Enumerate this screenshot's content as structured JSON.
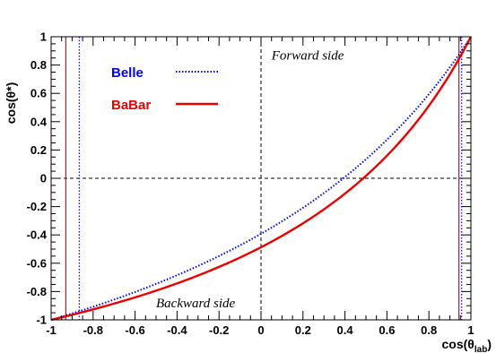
{
  "chart_data": {
    "type": "line",
    "xlim": [
      -1,
      1
    ],
    "ylim": [
      -1,
      1
    ],
    "xlabel_main": "cos(θ",
    "xlabel_sub": "lab",
    "xlabel_end": ")",
    "ylabel": "cos(θ*)",
    "x_ticks": [
      -1,
      -0.8,
      -0.6,
      -0.4,
      -0.2,
      0,
      0.2,
      0.4,
      0.6,
      0.8,
      1
    ],
    "x_tick_labels": [
      "-1",
      "-0.8",
      "-0.6",
      "-0.4",
      "-0.2",
      "0",
      "0.2",
      "0.4",
      "0.6",
      "0.8",
      "1"
    ],
    "y_ticks": [
      -1,
      -0.8,
      -0.6,
      -0.4,
      -0.2,
      0,
      0.2,
      0.4,
      0.6,
      0.8,
      1
    ],
    "y_tick_labels": [
      "-1",
      "-0.8",
      "-0.6",
      "-0.4",
      "-0.2",
      "0",
      "0.2",
      "0.4",
      "0.6",
      "0.8",
      "1"
    ],
    "grid": false,
    "legend_position": "top-left",
    "series": [
      {
        "name": "Belle",
        "color": "#0000ff",
        "style": "dotted",
        "beta": 0.392,
        "x": [
          -1,
          -0.9,
          -0.8,
          -0.7,
          -0.6,
          -0.5,
          -0.4,
          -0.3,
          -0.2,
          -0.1,
          0,
          0.1,
          0.2,
          0.3,
          0.4,
          0.5,
          0.6,
          0.7,
          0.8,
          0.9,
          1
        ],
        "y": [
          -1,
          -0.941,
          -0.877,
          -0.807,
          -0.732,
          -0.651,
          -0.564,
          -0.47,
          -0.369,
          -0.262,
          -0.392,
          -0.291,
          -0.185,
          -0.074,
          0.042,
          0.165,
          0.292,
          0.425,
          0.563,
          0.706,
          1
        ]
      },
      {
        "name": "BaBar",
        "color": "#ee0000",
        "style": "solid",
        "beta": 0.487,
        "x": [
          -1,
          -0.9,
          -0.8,
          -0.7,
          -0.6,
          -0.5,
          -0.4,
          -0.3,
          -0.2,
          -0.1,
          0,
          0.1,
          0.2,
          0.3,
          0.4,
          0.5,
          0.6,
          0.7,
          0.8,
          0.9,
          1
        ],
        "y": [
          -1,
          -0.951,
          -0.897,
          -0.838,
          -0.772,
          -0.699,
          -0.617,
          -0.526,
          -0.425,
          -0.313,
          -0.487,
          -0.393,
          -0.291,
          -0.182,
          -0.065,
          0.059,
          0.19,
          0.328,
          0.471,
          0.619,
          1
        ]
      }
    ],
    "reference_lines": [
      {
        "orientation": "vertical",
        "value": 0,
        "color": "#000000",
        "style": "dashed"
      },
      {
        "orientation": "horizontal",
        "value": 0,
        "color": "#000000",
        "style": "dashed"
      },
      {
        "orientation": "vertical",
        "value": -0.93,
        "color": "#ee0000",
        "style": "solid"
      },
      {
        "orientation": "vertical",
        "value": 0.943,
        "color": "#ee0000",
        "style": "solid"
      },
      {
        "orientation": "vertical",
        "value": -0.866,
        "color": "#0000ff",
        "style": "dotted"
      },
      {
        "orientation": "vertical",
        "value": 0.956,
        "color": "#0000ff",
        "style": "dotted"
      }
    ],
    "annotations": [
      {
        "text": "Forward side",
        "x": 0.05,
        "y": 0.84
      },
      {
        "text": "Backward side",
        "x": -0.5,
        "y": -0.91
      }
    ]
  }
}
